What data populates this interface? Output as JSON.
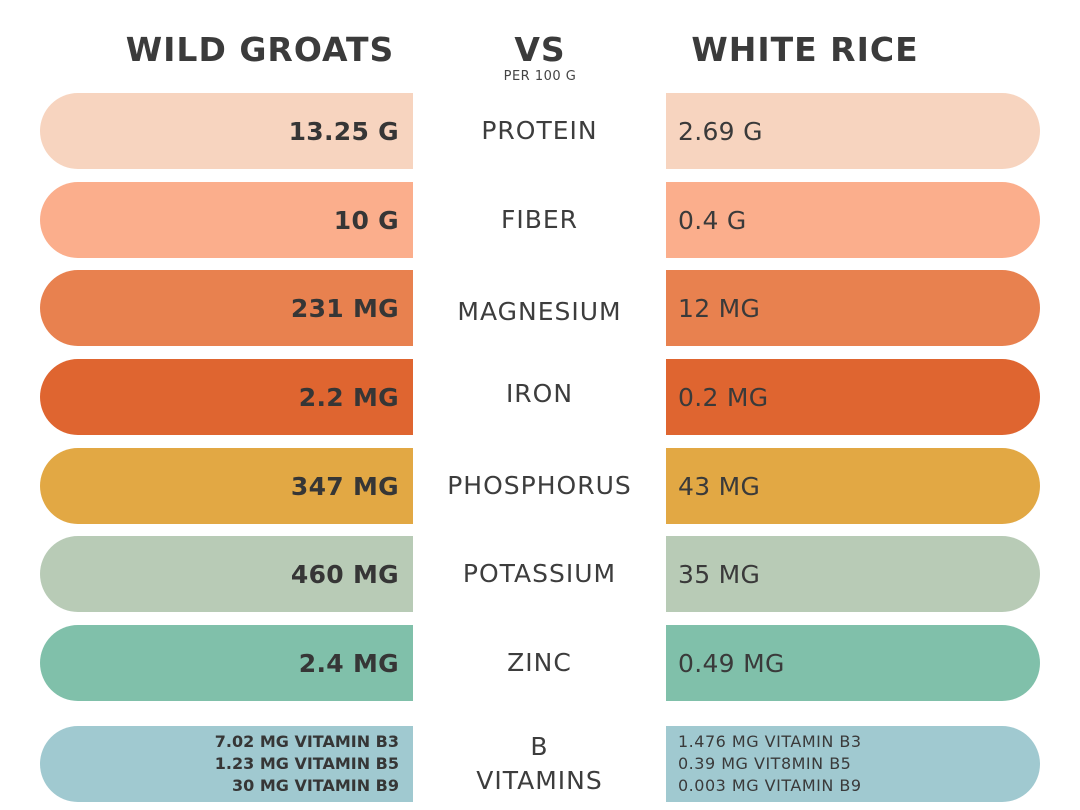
{
  "header": {
    "left_title": "WILD GROATS",
    "vs": "VS",
    "per": "PER 100 G",
    "right_title": "WHITE RICE"
  },
  "rows": [
    {
      "nutrient": "PROTEIN",
      "left": "13.25 G",
      "right": "2.69 G",
      "color": "#f7d4bf"
    },
    {
      "nutrient": "FIBER",
      "left": "10 G",
      "right": "0.4 G",
      "color": "#fbae8c"
    },
    {
      "nutrient": "MAGNESIUM",
      "left": "231 MG",
      "right": "12 MG",
      "color": "#e8814f"
    },
    {
      "nutrient": "IRON",
      "left": "2.2 MG",
      "right": "0.2 MG",
      "color": "#df6530"
    },
    {
      "nutrient": "PHOSPHORUS",
      "left": "347 MG",
      "right": "43 MG",
      "color": "#e2a844"
    },
    {
      "nutrient": "POTASSIUM",
      "left": "460 MG",
      "right": "35 MG",
      "color": "#b8cbb6"
    },
    {
      "nutrient": "ZINC",
      "left": "2.4 MG",
      "right": "0.49 MG",
      "color": "#80c0aa"
    }
  ],
  "b_vitamins": {
    "nutrient_line1": "B",
    "nutrient_line2": "VITAMINS",
    "color": "#a0c9d0",
    "left": [
      "7.02 MG VITAMIN B3",
      "1.23 MG VITAMIN B5",
      "30 MG VITAMIN B9"
    ],
    "right": [
      "1.476 MG VITAMIN B3",
      "0.39 MG VIT8MIN B5",
      "0.003  MG VITAMIN B9"
    ]
  }
}
